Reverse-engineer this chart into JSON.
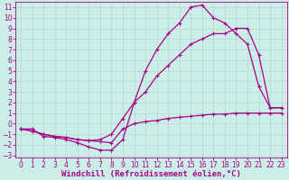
{
  "xlabel": "Windchill (Refroidissement éolien,°C)",
  "xlim": [
    -0.5,
    23.5
  ],
  "ylim": [
    -3.2,
    11.5
  ],
  "xticks": [
    0,
    1,
    2,
    3,
    4,
    5,
    6,
    7,
    8,
    9,
    10,
    11,
    12,
    13,
    14,
    15,
    16,
    17,
    18,
    19,
    20,
    21,
    22,
    23
  ],
  "yticks": [
    -3,
    -2,
    -1,
    0,
    1,
    2,
    3,
    4,
    5,
    6,
    7,
    8,
    9,
    10,
    11
  ],
  "bg_color": "#cceee8",
  "line_color": "#aa0088",
  "curve1_x": [
    0,
    1,
    2,
    3,
    4,
    5,
    6,
    7,
    8,
    9,
    10,
    11,
    12,
    13,
    14,
    15,
    16,
    17,
    18,
    19,
    20,
    21,
    22,
    23
  ],
  "curve1_y": [
    -0.5,
    -0.7,
    -1.0,
    -1.2,
    -1.3,
    -1.5,
    -1.6,
    -1.7,
    -1.8,
    -0.5,
    0.0,
    0.2,
    0.3,
    0.5,
    0.6,
    0.7,
    0.8,
    0.9,
    0.9,
    1.0,
    1.0,
    1.0,
    1.0,
    1.0
  ],
  "curve2_x": [
    0,
    1,
    2,
    3,
    4,
    5,
    6,
    7,
    8,
    9,
    10,
    11,
    12,
    13,
    14,
    15,
    16,
    17,
    18,
    19,
    20,
    21,
    22,
    23
  ],
  "curve2_y": [
    -0.5,
    -0.7,
    -1.0,
    -1.2,
    -1.3,
    -1.5,
    -1.6,
    -1.5,
    -1.0,
    0.5,
    2.0,
    3.0,
    4.5,
    5.5,
    6.5,
    7.5,
    8.0,
    8.5,
    8.5,
    9.0,
    9.0,
    6.5,
    1.5,
    1.5
  ],
  "curve3_x": [
    0,
    1,
    2,
    3,
    4,
    5,
    6,
    7,
    8,
    9,
    10,
    11,
    12,
    13,
    14,
    15,
    16,
    17,
    18,
    19,
    20,
    21,
    22,
    23
  ],
  "curve3_y": [
    -0.5,
    -0.5,
    -1.2,
    -1.3,
    -1.5,
    -1.8,
    -2.2,
    -2.5,
    -2.5,
    -1.5,
    2.0,
    5.0,
    7.0,
    8.5,
    9.5,
    11.0,
    11.2,
    10.0,
    9.5,
    8.5,
    7.5,
    3.5,
    1.5,
    1.5
  ],
  "tick_fontsize": 5.5,
  "label_fontsize": 6.5,
  "grid_color": "#aaddcc",
  "marker": "+"
}
